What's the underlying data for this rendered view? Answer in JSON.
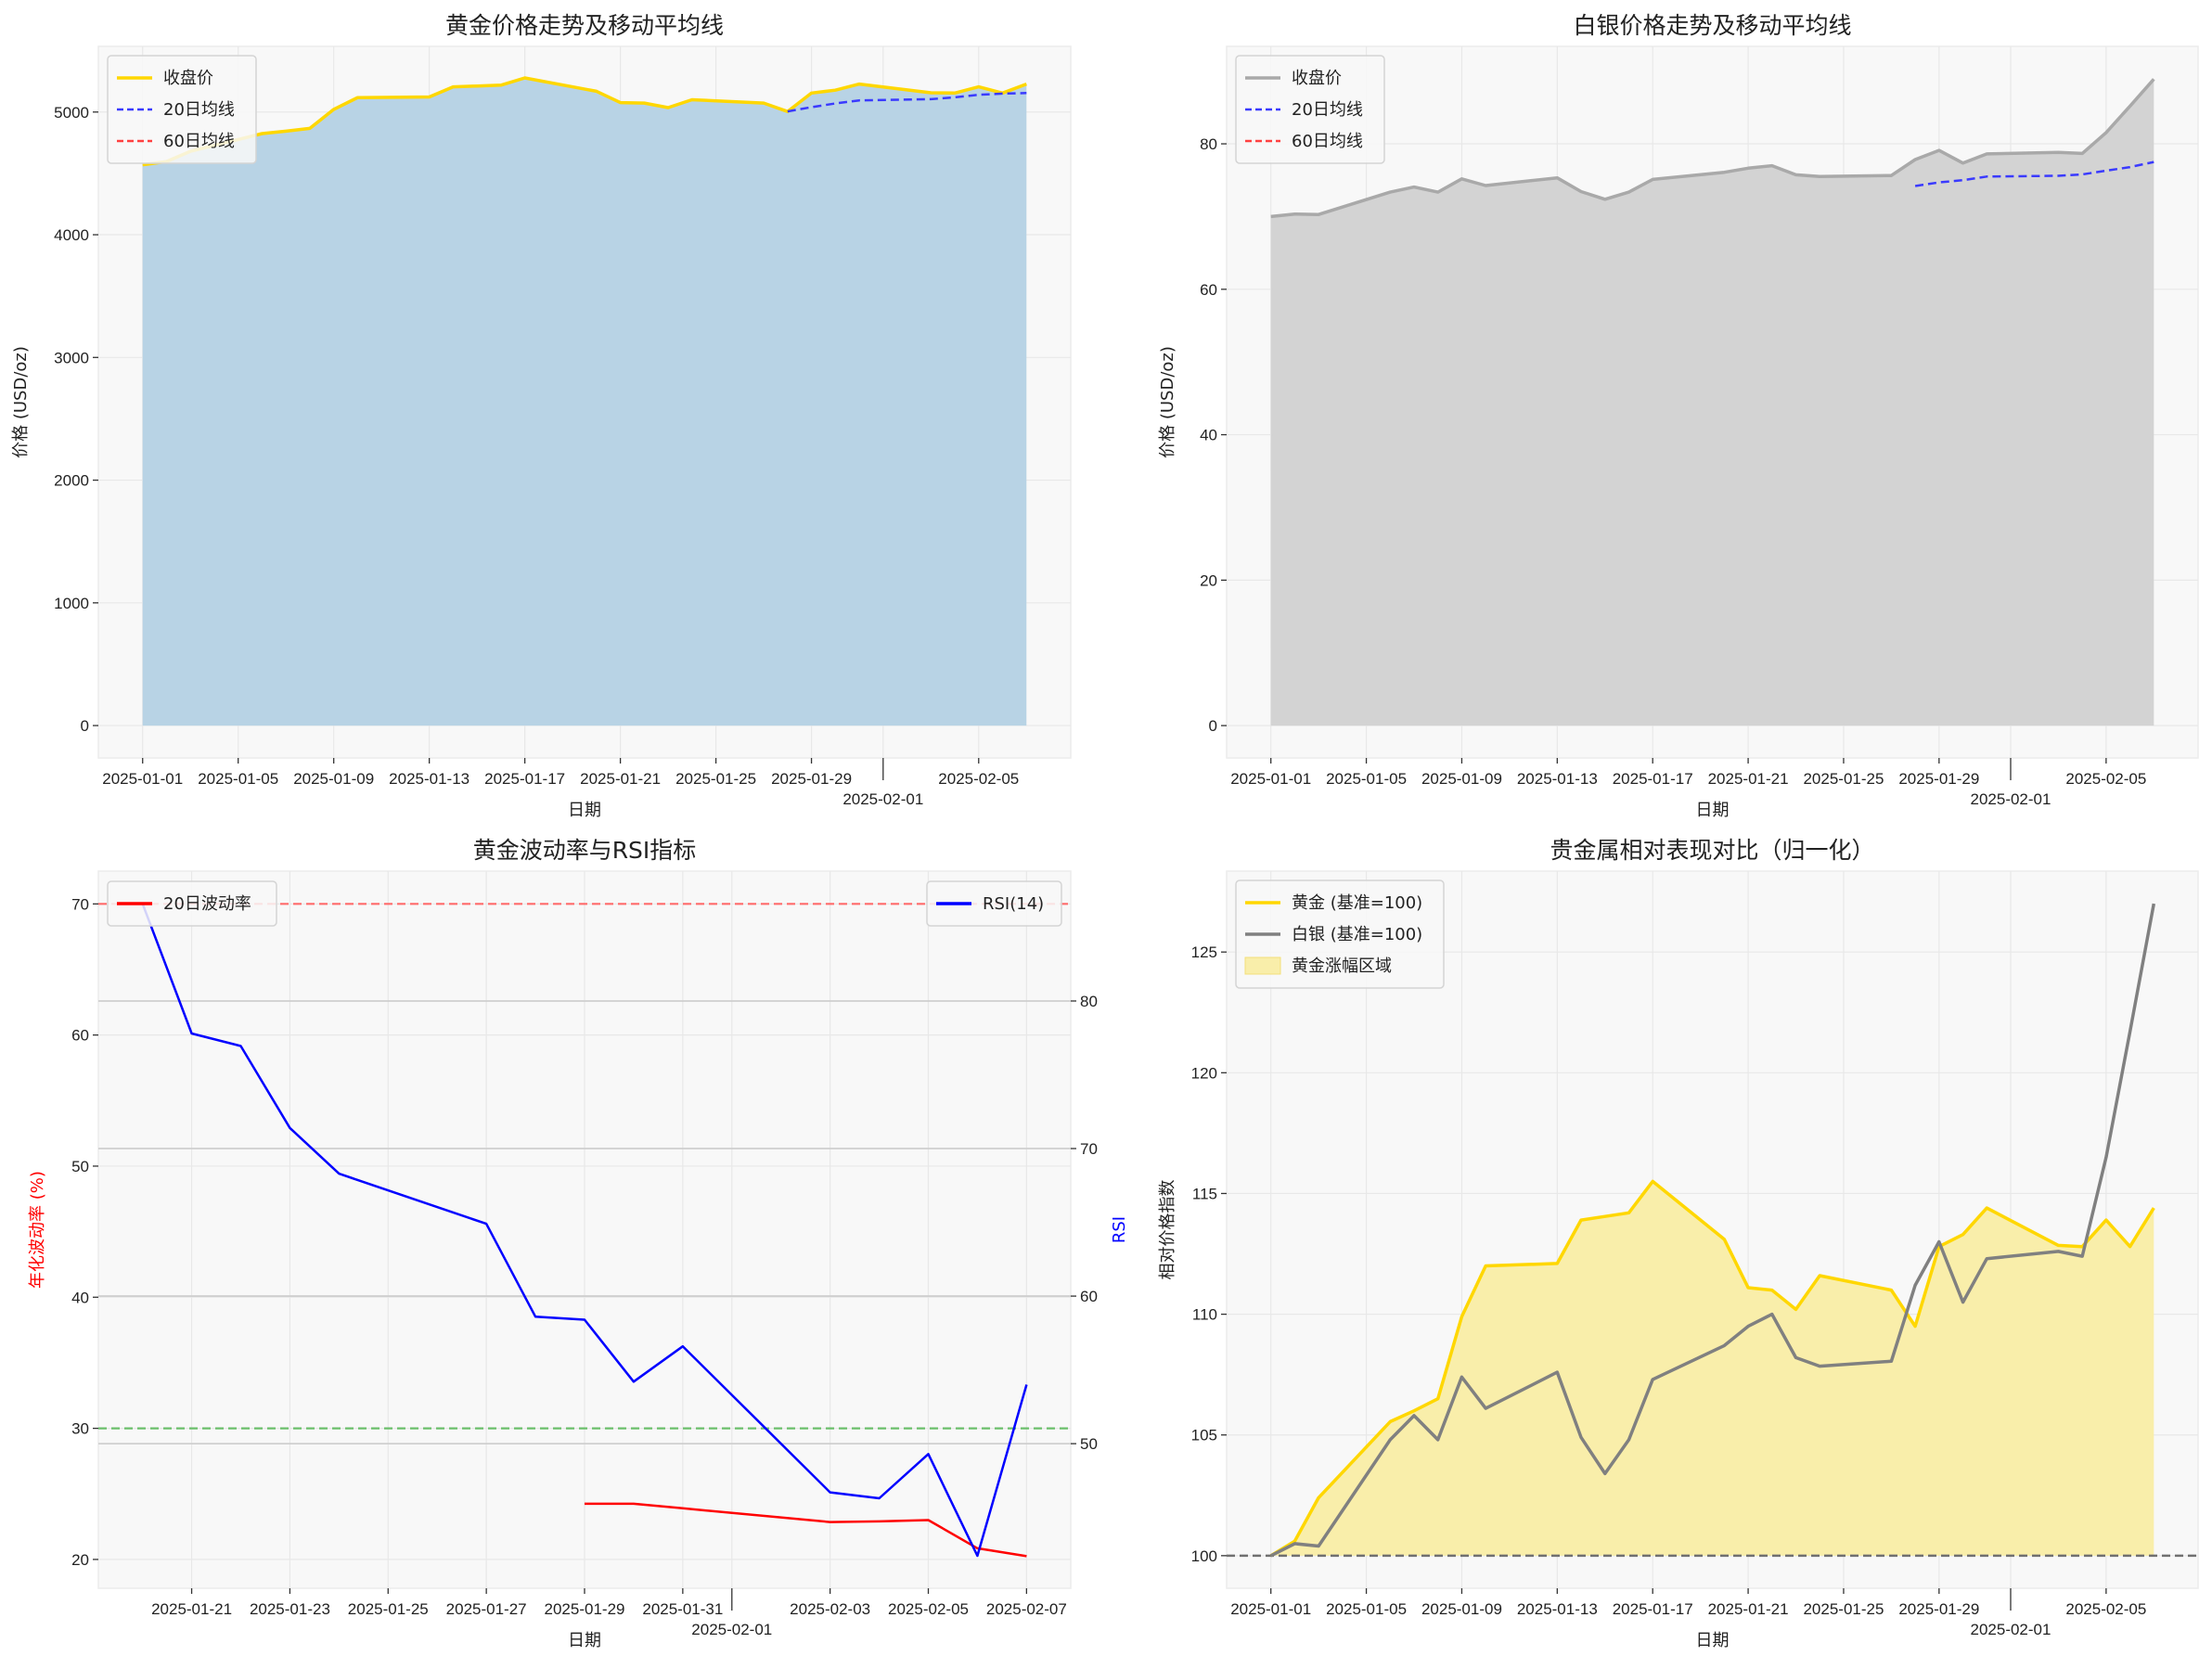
{
  "dates": [
    "2025-01-01",
    "2025-01-02",
    "2025-01-03",
    "2025-01-06",
    "2025-01-07",
    "2025-01-08",
    "2025-01-09",
    "2025-01-10",
    "2025-01-13",
    "2025-01-14",
    "2025-01-15",
    "2025-01-16",
    "2025-01-17",
    "2025-01-20",
    "2025-01-21",
    "2025-01-22",
    "2025-01-23",
    "2025-01-24",
    "2025-01-27",
    "2025-01-28",
    "2025-01-29",
    "2025-01-30",
    "2025-01-31",
    "2025-02-03",
    "2025-02-04",
    "2025-02-05",
    "2025-02-06",
    "2025-02-07"
  ],
  "chart_data": [
    {
      "type": "area",
      "title": "黄金价格走势及移动平均线",
      "xlabel": "日期",
      "ylabel": "价格 (USD/oz)",
      "xlim": [
        "2024-12-30T03:30",
        "2025-02-08T20:30"
      ],
      "ylim": [
        -264,
        5535
      ],
      "grid": true,
      "legend": "upper-left",
      "xticks": [
        "2025-01-01",
        "2025-01-05",
        "2025-01-09",
        "2025-01-13",
        "2025-01-17",
        "2025-01-21",
        "2025-01-25",
        "2025-01-29",
        "2025-02-01",
        "2025-02-05"
      ],
      "yticks": [
        0,
        1000,
        2000,
        3000,
        4000,
        5000
      ],
      "fill_color": "#b8d3e5",
      "series": [
        {
          "name": "收盘价",
          "color": "#FFD700",
          "style": "solid",
          "start_date": "2025-01-01",
          "values": [
            4570,
            4597,
            4680,
            4824,
            4844,
            4867,
            5022,
            5118,
            5123,
            5205,
            5212,
            5219,
            5278,
            5169,
            5077,
            5073,
            5036,
            5100,
            5073,
            5004,
            5155,
            5178,
            5228,
            5157,
            5155,
            5205,
            5155,
            5228
          ]
        },
        {
          "name": "20日均线",
          "color": "#3a3aff",
          "style": "dashed",
          "start_date": "2025-01-28",
          "values": [
            5005,
            5040,
            5070,
            5095,
            5105,
            5120,
            5140,
            5150,
            5155
          ]
        },
        {
          "name": "60日均线",
          "color": "#ff4040",
          "style": "dashed",
          "start_date": "2025-01-01",
          "values": []
        }
      ]
    },
    {
      "type": "area",
      "title": "白银价格走势及移动平均线",
      "xlabel": "日期",
      "ylabel": "价格 (USD/oz)",
      "xlim": [
        "2024-12-30T03:30",
        "2025-02-08T20:30"
      ],
      "ylim": [
        -4.45,
        93.4
      ],
      "grid": true,
      "legend": "upper-left",
      "xticks": [
        "2025-01-01",
        "2025-01-05",
        "2025-01-09",
        "2025-01-13",
        "2025-01-17",
        "2025-01-21",
        "2025-01-25",
        "2025-01-29",
        "2025-02-01",
        "2025-02-05"
      ],
      "yticks": [
        0,
        20,
        40,
        60,
        80
      ],
      "fill_color": "#d3d3d3",
      "series": [
        {
          "name": "收盘价",
          "color": "#a9a9a9",
          "style": "solid",
          "start_date": "2025-01-01",
          "values": [
            70.0,
            70.35,
            70.28,
            73.36,
            74.06,
            73.36,
            75.18,
            74.27,
            75.32,
            73.43,
            72.38,
            73.36,
            75.11,
            76.09,
            76.65,
            77.0,
            75.74,
            75.5,
            75.64,
            77.84,
            79.1,
            77.35,
            78.61,
            78.82,
            78.68,
            81.55,
            85.19,
            88.9
          ]
        },
        {
          "name": "20日均线",
          "color": "#3a3aff",
          "style": "dashed",
          "start_date": "2025-01-28",
          "values": [
            74.2,
            74.7,
            75.0,
            75.5,
            75.6,
            75.8,
            76.3,
            76.8,
            77.5
          ]
        },
        {
          "name": "60日均线",
          "color": "#ff4040",
          "style": "dashed",
          "start_date": "2025-01-01",
          "values": []
        }
      ]
    },
    {
      "type": "line",
      "title": "黄金波动率与RSI指标",
      "xlabel": "日期",
      "ylabel": "年化波动率 (%)",
      "ylabel_right": "RSI",
      "xlim": [
        "2025-01-19T02:24",
        "2025-02-07T21:36"
      ],
      "ylim": [
        17.8,
        72.5
      ],
      "ylim_right": [
        40.2,
        88.8
      ],
      "grid": true,
      "legend": "upper-left / upper-right",
      "xticks": [
        "2025-01-21",
        "2025-01-23",
        "2025-01-25",
        "2025-01-27",
        "2025-01-29",
        "2025-01-31",
        "2025-02-01",
        "2025-02-03",
        "2025-02-05",
        "2025-02-07"
      ],
      "yticks": [
        20,
        30,
        40,
        50,
        60,
        70
      ],
      "yticks_right": [
        50,
        60,
        70,
        80
      ],
      "hlines": [
        {
          "y": 70,
          "color": "#ff6b6b"
        },
        {
          "y": 30,
          "color": "#6bbf6b"
        }
      ],
      "series": [
        {
          "name": "20日波动率",
          "axis": "left",
          "color": "#ff0000",
          "style": "solid",
          "start_date": "2025-01-29",
          "values": [
            24.25,
            24.25,
            23.9,
            22.85,
            22.9,
            23.0,
            20.85,
            20.25
          ]
        },
        {
          "name": "RSI(14)",
          "axis": "right",
          "color": "#0000ff",
          "style": "solid",
          "start_date": "2025-01-20",
          "values": [
            86.6,
            77.8,
            76.95,
            71.4,
            68.3,
            64.9,
            58.6,
            58.4,
            54.2,
            56.6,
            46.7,
            46.3,
            49.3,
            42.4,
            54.0
          ]
        }
      ]
    },
    {
      "type": "line",
      "title": "贵金属相对表现对比（归一化）",
      "xlabel": "日期",
      "ylabel": "相对价格指数",
      "xlim": [
        "2024-12-30T03:30",
        "2025-02-08T20:30"
      ],
      "ylim": [
        98.65,
        128.35
      ],
      "grid": true,
      "legend": "upper-left",
      "xticks": [
        "2025-01-01",
        "2025-01-05",
        "2025-01-09",
        "2025-01-13",
        "2025-01-17",
        "2025-01-21",
        "2025-01-25",
        "2025-01-29",
        "2025-02-01",
        "2025-02-05"
      ],
      "yticks": [
        100,
        105,
        110,
        115,
        120,
        125
      ],
      "baseline": 100,
      "fill_name": "黄金涨幅区域",
      "fill_color": "#f9eeaa",
      "series": [
        {
          "name": "黄金 (基准=100)",
          "color": "#FFD700",
          "style": "solid",
          "start_date": "2025-01-01",
          "values": [
            100,
            100.6,
            102.4,
            105.55,
            106.0,
            106.5,
            109.9,
            112.0,
            112.1,
            113.9,
            114.05,
            114.2,
            115.5,
            113.1,
            111.1,
            111.0,
            110.2,
            111.6,
            111.0,
            109.5,
            112.8,
            113.3,
            114.4,
            112.85,
            112.8,
            113.9,
            112.8,
            114.4
          ]
        },
        {
          "name": "白银 (基准=100)",
          "color": "#808080",
          "style": "solid",
          "start_date": "2025-01-01",
          "values": [
            100,
            100.5,
            100.4,
            104.8,
            105.8,
            104.8,
            107.4,
            106.1,
            107.6,
            104.9,
            103.4,
            104.8,
            107.3,
            108.7,
            109.5,
            110.0,
            108.2,
            107.85,
            108.05,
            111.2,
            113.0,
            110.5,
            112.3,
            112.6,
            112.4,
            116.5,
            121.7,
            127.0
          ]
        }
      ]
    }
  ]
}
